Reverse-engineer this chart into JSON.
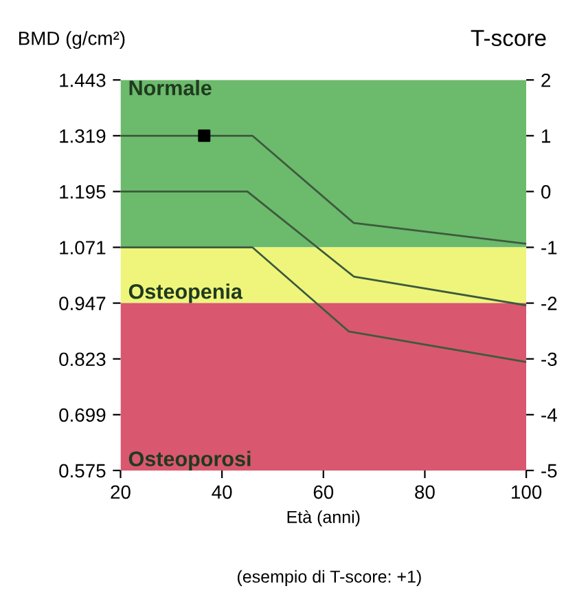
{
  "chart_data": {
    "type": "line",
    "ylabel": "BMD (g/cm²)",
    "y2label": "T-score",
    "xlabel": "Età (anni)",
    "annotations": [
      "(esempio di T-score: +1)"
    ],
    "xlim": [
      20,
      100
    ],
    "xticks": [
      20,
      40,
      60,
      80,
      100
    ],
    "ylim": [
      0.575,
      1.443
    ],
    "yticks": [
      0.575,
      0.699,
      0.823,
      0.947,
      1.071,
      1.195,
      1.319,
      1.443
    ],
    "y2lim": [
      -5,
      2
    ],
    "y2ticks": [
      -5,
      -4,
      -3,
      -2,
      -1,
      0,
      1,
      2
    ],
    "bands": [
      {
        "axis": "y",
        "from": 1.071,
        "to": 1.443,
        "label": "Normale",
        "color": "#6cba6c"
      },
      {
        "axis": "y",
        "from": 0.947,
        "to": 1.071,
        "label": "Osteopenia",
        "color": "#eef57a"
      },
      {
        "axis": "y",
        "from": 0.575,
        "to": 0.947,
        "label": "Osteoporosi",
        "color": "#d9576f"
      }
    ],
    "grid": false,
    "legend": false,
    "series": [
      {
        "color": "#3d5a3d",
        "x": [
          20,
          46,
          66,
          100
        ],
        "values": [
          1.319,
          1.319,
          1.125,
          1.079
        ]
      },
      {
        "color": "#3d5a3d",
        "x": [
          20,
          45,
          66,
          100
        ],
        "values": [
          1.195,
          1.195,
          1.006,
          0.942
        ]
      },
      {
        "color": "#3d5a3d",
        "x": [
          20,
          46,
          65,
          100
        ],
        "values": [
          1.071,
          1.071,
          0.884,
          0.816
        ]
      },
      {
        "type": "scatter",
        "color": "#000000",
        "marker": "square",
        "x": [
          36.5
        ],
        "values": [
          1.319
        ]
      }
    ]
  }
}
